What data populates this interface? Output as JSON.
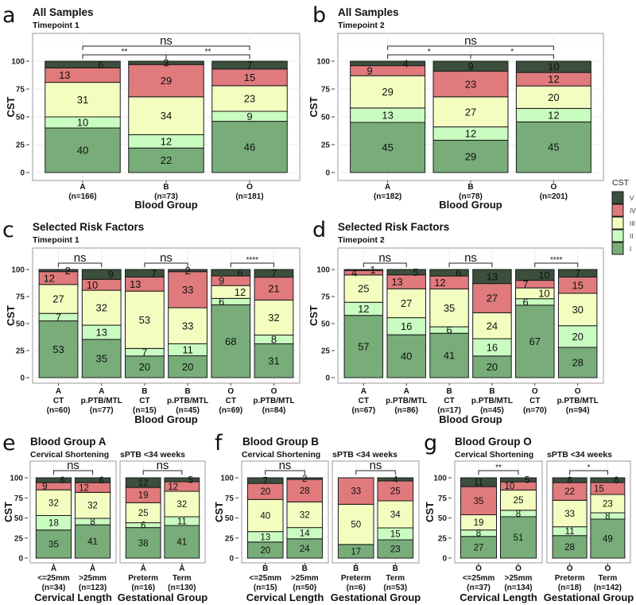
{
  "chart_data": {
    "type": "bar",
    "stacked": true,
    "categories": [
      "I",
      "II",
      "III",
      "IV",
      "V"
    ],
    "colors": {
      "I": "#78ad7a",
      "II": "#c9fcc0",
      "III": "#f4fdc0",
      "IV": "#e07a7c",
      "V": "#3b4f3c"
    },
    "legend": {
      "title": "CST",
      "labels": [
        "V",
        "IV",
        "III",
        "II",
        "I"
      ],
      "placement": "right"
    },
    "ylim": [
      0,
      100
    ],
    "yticks": [
      "0",
      "25",
      "50",
      "75",
      "100"
    ],
    "panels": [
      {
        "letter": "a",
        "title": "All Samples",
        "ylabel": "CST",
        "facets": [
          {
            "subtitle": "Timepoint 1",
            "xlabel": "Blood Group",
            "bars": [
              {
                "line1": "A",
                "n": "(n=166)",
                "values": [
                  40,
                  10,
                  31,
                  13,
                  6
                ]
              },
              {
                "line1": "B",
                "n": "(n=73)",
                "values": [
                  22,
                  12,
                  34,
                  29,
                  3
                ]
              },
              {
                "line1": "O",
                "n": "(n=181)",
                "values": [
                  46,
                  9,
                  23,
                  15,
                  7
                ]
              }
            ],
            "brackets": [
              {
                "from": 0,
                "to": 2,
                "label": "ns",
                "level": 2
              },
              {
                "from": 0,
                "to": 1,
                "label": "**",
                "level": 1
              },
              {
                "from": 1,
                "to": 2,
                "label": "**",
                "level": 1
              }
            ]
          }
        ]
      },
      {
        "letter": "b",
        "title": "All Samples",
        "ylabel": "CST",
        "facets": [
          {
            "subtitle": "Timepoint 2",
            "xlabel": "Blood Group",
            "bars": [
              {
                "line1": "A",
                "n": "(n=182)",
                "values": [
                  45,
                  13,
                  29,
                  9,
                  4
                ]
              },
              {
                "line1": "B",
                "n": "(n=78)",
                "values": [
                  29,
                  12,
                  27,
                  23,
                  9
                ]
              },
              {
                "line1": "O",
                "n": "(n=201)",
                "values": [
                  45,
                  12,
                  20,
                  12,
                  10
                ]
              }
            ],
            "brackets": [
              {
                "from": 0,
                "to": 2,
                "label": "ns",
                "level": 2
              },
              {
                "from": 0,
                "to": 1,
                "label": "*",
                "level": 1
              },
              {
                "from": 1,
                "to": 2,
                "label": "*",
                "level": 1
              }
            ]
          }
        ]
      },
      {
        "letter": "c",
        "title": "Selected Risk Factors",
        "ylabel": "CST",
        "facets": [
          {
            "subtitle": "Timepoint 1",
            "xlabel": "Blood Group",
            "bars": [
              {
                "line1": "A",
                "line2": "CT",
                "n": "(n=60)",
                "values": [
                  53,
                  7,
                  27,
                  12,
                  2
                ]
              },
              {
                "line1": "A",
                "line2": "p.PTB/MTL",
                "n": "(n=77)",
                "values": [
                  35,
                  13,
                  32,
                  10,
                  9
                ]
              },
              {
                "line1": "B",
                "line2": "CT",
                "n": "(n=15)",
                "values": [
                  20,
                  7,
                  53,
                  13,
                  7
                ]
              },
              {
                "line1": "B",
                "line2": "p.PTB/MTL",
                "n": "(n=45)",
                "values": [
                  20,
                  11,
                  33,
                  33,
                  2
                ]
              },
              {
                "line1": "O",
                "line2": "CT",
                "n": "(n=69)",
                "values": [
                  68,
                  6,
                  12,
                  9,
                  6
                ]
              },
              {
                "line1": "O",
                "line2": "p.PTB/MTL",
                "n": "(n=84)",
                "values": [
                  31,
                  8,
                  32,
                  21,
                  7
                ]
              }
            ],
            "brackets": [
              {
                "from": 0,
                "to": 1,
                "label": "ns",
                "level": 1
              },
              {
                "from": 2,
                "to": 3,
                "label": "ns",
                "level": 1
              },
              {
                "from": 4,
                "to": 5,
                "label": "****",
                "level": 1
              }
            ]
          }
        ]
      },
      {
        "letter": "d",
        "title": "Selected Risk Factors",
        "ylabel": "CST",
        "facets": [
          {
            "subtitle": "Timepoint 2",
            "xlabel": "Blood Group",
            "bars": [
              {
                "line1": "A",
                "line2": "CT",
                "n": "(n=67)",
                "values": [
                  57,
                  12,
                  25,
                  4,
                  1
                ]
              },
              {
                "line1": "A",
                "line2": "p.PTB/MTL",
                "n": "(n=86)",
                "values": [
                  40,
                  16,
                  27,
                  13,
                  5
                ]
              },
              {
                "line1": "B",
                "line2": "CT",
                "n": "(n=17)",
                "values": [
                  41,
                  6,
                  35,
                  12,
                  6
                ]
              },
              {
                "line1": "B",
                "line2": "p.PTB/MTL",
                "n": "(n=45)",
                "values": [
                  20,
                  16,
                  24,
                  27,
                  13
                ]
              },
              {
                "line1": "O",
                "line2": "CT",
                "n": "(n=70)",
                "values": [
                  67,
                  6,
                  10,
                  7,
                  10
                ]
              },
              {
                "line1": "O",
                "line2": "p.PTB/MTL",
                "n": "(n=94)",
                "values": [
                  28,
                  20,
                  30,
                  15,
                  7
                ]
              }
            ],
            "brackets": [
              {
                "from": 0,
                "to": 1,
                "label": "ns",
                "level": 1
              },
              {
                "from": 2,
                "to": 3,
                "label": "ns",
                "level": 1
              },
              {
                "from": 4,
                "to": 5,
                "label": "****",
                "level": 1
              }
            ]
          }
        ]
      },
      {
        "letter": "e",
        "title": "Blood Group A",
        "ylabel": "CST",
        "facets": [
          {
            "subtitle": "Cervical Shortening",
            "xlabel": "Cervical Length",
            "bars": [
              {
                "line1": "A",
                "line2": "<=25mm",
                "n": "(n=34)",
                "values": [
                  35,
                  18,
                  32,
                  9,
                  6
                ]
              },
              {
                "line1": "A",
                "line2": ">25mm",
                "n": "(n=123)",
                "values": [
                  41,
                  8,
                  32,
                  12,
                  6
                ]
              }
            ],
            "brackets": [
              {
                "from": 0,
                "to": 1,
                "label": "ns",
                "level": 1
              }
            ]
          },
          {
            "subtitle": "sPTB <34 weeks",
            "xlabel": "Gestational Group",
            "bars": [
              {
                "line1": "A",
                "line2": "Preterm",
                "n": "(n=16)",
                "values": [
                  38,
                  6,
                  25,
                  19,
                  12
                ]
              },
              {
                "line1": "A",
                "line2": "Term",
                "n": "(n=130)",
                "values": [
                  41,
                  11,
                  32,
                  12,
                  5
                ]
              }
            ],
            "brackets": [
              {
                "from": 0,
                "to": 1,
                "label": "ns",
                "level": 1
              }
            ]
          }
        ]
      },
      {
        "letter": "f",
        "title": "Blood Group B",
        "ylabel": "CST",
        "facets": [
          {
            "subtitle": "Cervical Shortening",
            "xlabel": "Cervical Length",
            "bars": [
              {
                "line1": "B",
                "line2": "<=25mm",
                "n": "(n=15)",
                "values": [
                  20,
                  13,
                  40,
                  20,
                  7
                ]
              },
              {
                "line1": "B",
                "line2": ">25mm",
                "n": "(n=50)",
                "values": [
                  24,
                  14,
                  32,
                  28,
                  2
                ]
              }
            ],
            "brackets": [
              {
                "from": 0,
                "to": 1,
                "label": "ns",
                "level": 1
              }
            ]
          },
          {
            "subtitle": "sPTB <34 weeks",
            "xlabel": "Gestational Group",
            "bars": [
              {
                "line1": "B",
                "line2": "Preterm",
                "n": "(n=6)",
                "values": [
                  17,
                  0,
                  50,
                  33,
                  0
                ]
              },
              {
                "line1": "B",
                "line2": "Term",
                "n": "(n=53)",
                "values": [
                  23,
                  15,
                  34,
                  25,
                  4
                ]
              }
            ],
            "brackets": [
              {
                "from": 0,
                "to": 1,
                "label": "ns",
                "level": 1
              }
            ]
          }
        ]
      },
      {
        "letter": "g",
        "title": "Blood Group O",
        "ylabel": "CST",
        "facets": [
          {
            "subtitle": "Cervical Shortening",
            "xlabel": "Cervical Length",
            "bars": [
              {
                "line1": "O",
                "line2": "<=25mm",
                "n": "(n=37)",
                "values": [
                  27,
                  8,
                  19,
                  35,
                  11
                ]
              },
              {
                "line1": "O",
                "line2": ">25mm",
                "n": "(n=134)",
                "values": [
                  51,
                  8,
                  25,
                  10,
                  5
                ]
              }
            ],
            "brackets": [
              {
                "from": 0,
                "to": 1,
                "label": "**",
                "level": 1
              }
            ]
          },
          {
            "subtitle": "sPTB <34 weeks",
            "xlabel": "Gestational Group",
            "bars": [
              {
                "line1": "O",
                "line2": "Preterm",
                "n": "(n=18)",
                "values": [
                  28,
                  11,
                  33,
                  22,
                  6
                ]
              },
              {
                "line1": "O",
                "line2": "Term",
                "n": "(n=142)",
                "values": [
                  49,
                  8,
                  23,
                  15,
                  6
                ]
              }
            ],
            "brackets": [
              {
                "from": 0,
                "to": 1,
                "label": "*",
                "level": 1
              }
            ]
          }
        ]
      }
    ]
  }
}
